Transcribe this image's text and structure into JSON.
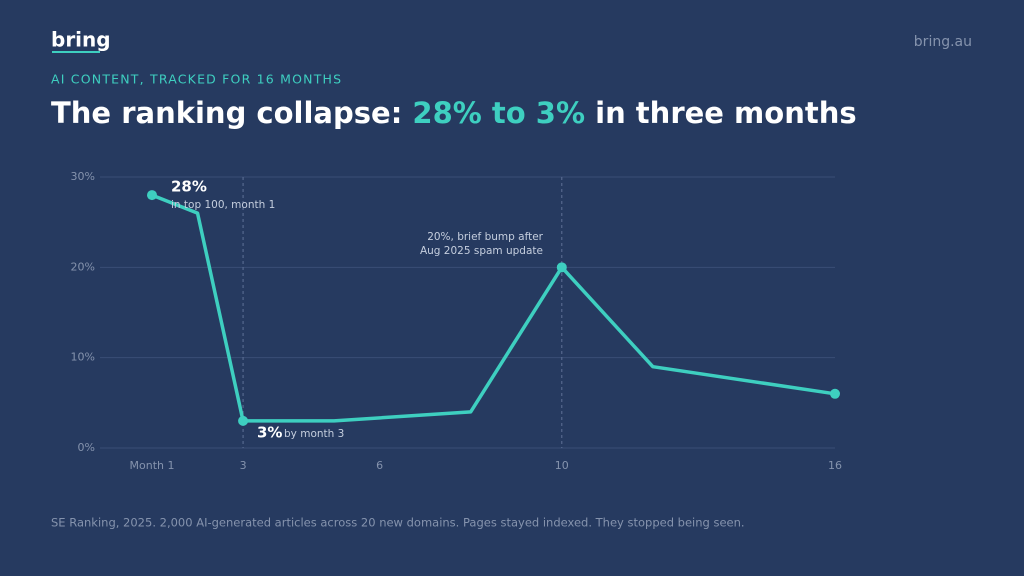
{
  "header": {
    "logo": "bring",
    "site": "bring.au"
  },
  "chart_data": {
    "type": "line",
    "subtitle": "AI CONTENT, TRACKED FOR 16 MONTHS",
    "title": [
      "The ranking collapse: ",
      "28% to 3%",
      " in three months"
    ],
    "x": [
      1,
      2,
      3,
      5,
      8,
      10,
      12,
      16
    ],
    "values": [
      28,
      26,
      3,
      3,
      4,
      20,
      9,
      6
    ],
    "color": "#3ecfc0",
    "xlim": [
      1,
      16
    ],
    "ylim": [
      0,
      30
    ],
    "xticks": [
      {
        "value": 1,
        "label": "Month 1"
      },
      3,
      6,
      10,
      16
    ],
    "yticks": [
      {
        "value": 0,
        "label": "0%"
      },
      {
        "value": 10,
        "label": "10%"
      },
      {
        "value": 20,
        "label": "20%"
      },
      {
        "value": 30,
        "label": "30%"
      }
    ],
    "grid": true,
    "marker_x": [
      1,
      3,
      10,
      16
    ],
    "dashed_x": [
      3,
      10
    ],
    "annotations": [
      {
        "label": "28%",
        "note": "in top 100, month 1"
      },
      {
        "label": "3%",
        "note": "by month 3"
      },
      {
        "lines": [
          "20%, brief bump after",
          "Aug 2025 spam update"
        ]
      }
    ],
    "source": "SE Ranking, 2025. 2,000 AI-generated articles across 20 new domains. Pages stayed indexed. They stopped being seen."
  }
}
